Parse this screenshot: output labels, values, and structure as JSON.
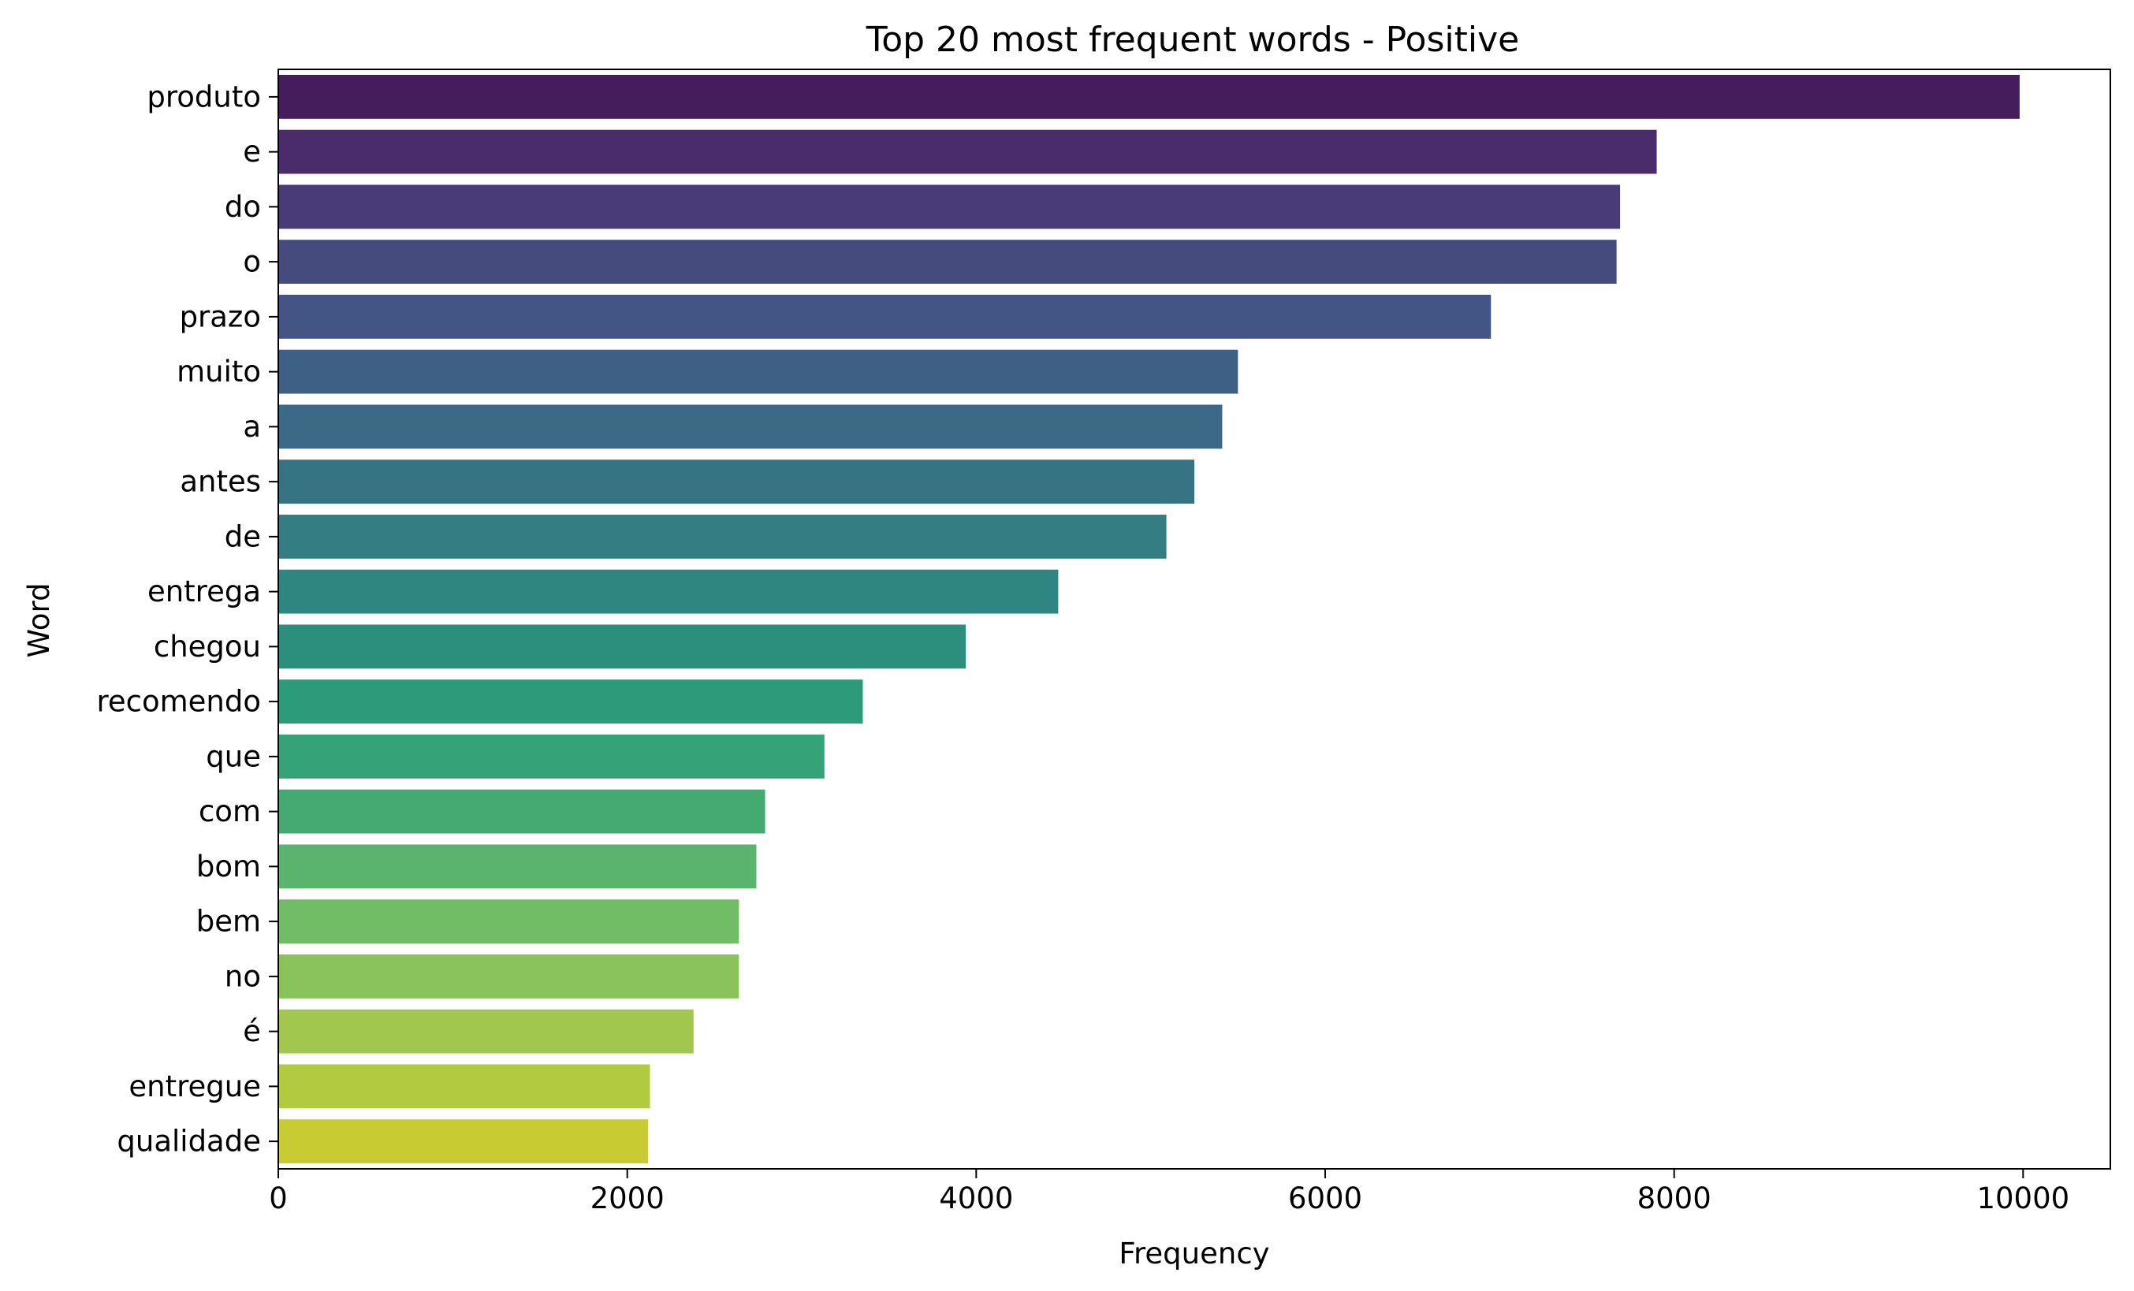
{
  "chart_data": {
    "type": "bar",
    "orientation": "horizontal",
    "title": "Top 20 most frequent words - Positive",
    "xlabel": "Frequency",
    "ylabel": "Word",
    "xlim": [
      0,
      10500
    ],
    "xticks": [
      0,
      2000,
      4000,
      6000,
      8000,
      10000
    ],
    "grid": false,
    "categories": [
      "produto",
      "e",
      "do",
      "o",
      "prazo",
      "muito",
      "a",
      "antes",
      "de",
      "entrega",
      "chegou",
      "recomendo",
      "que",
      "com",
      "bom",
      "bem",
      "no",
      "é",
      "entregue",
      "qualidade"
    ],
    "values": [
      9980,
      7900,
      7690,
      7670,
      6950,
      5500,
      5410,
      5250,
      5090,
      4470,
      3940,
      3350,
      3130,
      2790,
      2740,
      2640,
      2640,
      2380,
      2130,
      2120
    ],
    "colors": [
      "#451c5c",
      "#4a2c6c",
      "#483b77",
      "#464b7e",
      "#435584",
      "#3f6085",
      "#3c6985",
      "#367484",
      "#337d83",
      "#2f8681",
      "#2c8f7e",
      "#2d9a7a",
      "#35a377",
      "#45aa72",
      "#5ab46d",
      "#70bd65",
      "#8ac25b",
      "#a1c74e",
      "#b1ca3f",
      "#c8cc32"
    ]
  }
}
